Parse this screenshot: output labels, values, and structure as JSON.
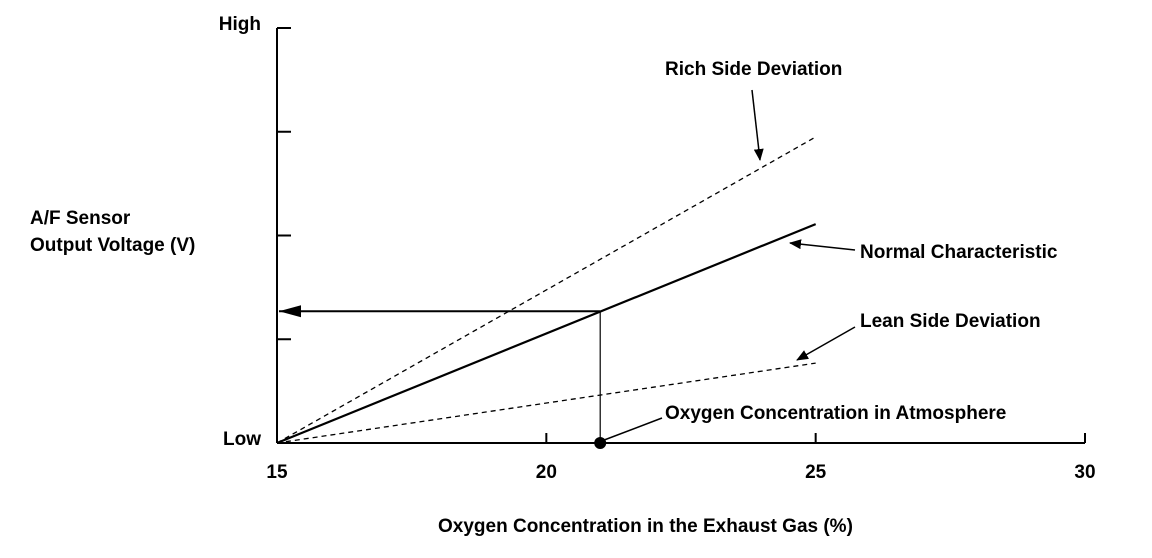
{
  "chart_data": {
    "type": "line",
    "xlabel": "Oxygen Concentration in the Exhaust Gas (%)",
    "ylabel": [
      "A/F Sensor",
      "Output Voltage (V)"
    ],
    "xlim": [
      15,
      30
    ],
    "xticks": [
      15,
      20,
      25,
      30
    ],
    "ylim": [
      0,
      4
    ],
    "yticks": [
      {
        "value": 0,
        "label": "Low"
      },
      {
        "value": 4,
        "label": "High"
      }
    ],
    "yminorticks": [
      1,
      2,
      3
    ],
    "series": [
      {
        "name": "Rich Side Deviation",
        "color": "#000000",
        "style": "dashed",
        "x": [
          15,
          25
        ],
        "values": [
          0,
          2.95
        ]
      },
      {
        "name": "Normal Characteristic",
        "color": "#000000",
        "style": "solid",
        "x": [
          15,
          25
        ],
        "values": [
          0,
          2.11
        ]
      },
      {
        "name": "Lean Side Deviation",
        "color": "#000000",
        "style": "dashed",
        "x": [
          15,
          25
        ],
        "values": [
          0,
          0.77
        ]
      }
    ],
    "reference": {
      "label": "Oxygen Concentration in Atmosphere",
      "x": 21,
      "y": 1.27
    }
  }
}
